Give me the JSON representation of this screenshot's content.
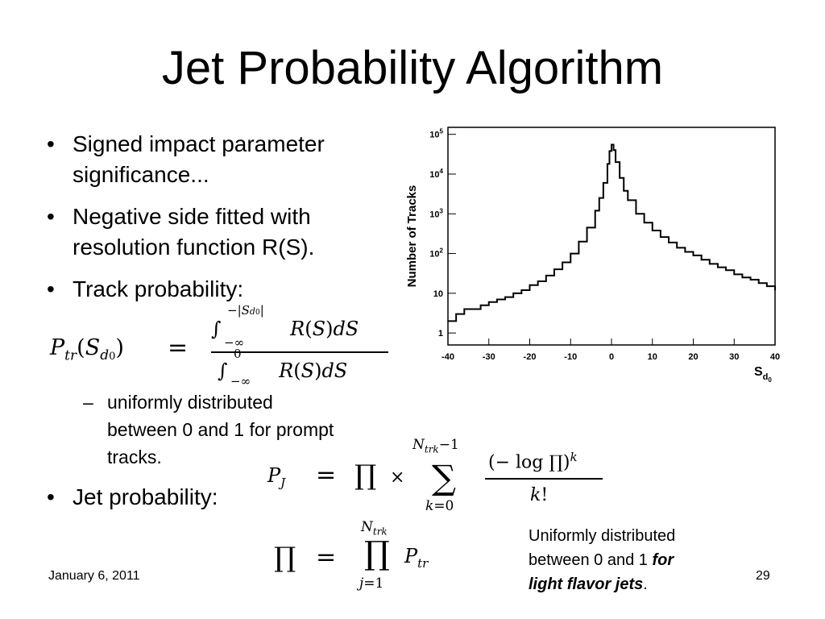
{
  "slide": {
    "title": "Jet Probability Algorithm",
    "bullets": [
      {
        "text": "Signed impact parameter"
      },
      {
        "text": "significance..."
      },
      {
        "text": "Negative side fitted with"
      },
      {
        "text": "resolution function R(S)."
      },
      {
        "text": "Track probability:"
      }
    ],
    "sub_bullet": [
      "uniformly distributed",
      "between 0 and 1 for prompt",
      "tracks."
    ],
    "jet_bullet": "Jet probability:",
    "bullet_glyph": "•",
    "dash_glyph": "–",
    "note": {
      "line1": "Uniformly distributed",
      "line2_plain": "between 0 and 1 ",
      "line2_emph": "for",
      "line3_emph": "light flavor jets",
      "line3_tail": "."
    },
    "footer": {
      "date": "January 6, 2011",
      "page": "29"
    }
  },
  "equations": {
    "track_prob_lhs": "P_tr(S_d0)",
    "track_prob_num": "∫_{-∞}^{-|S_d0|} R(S)dS",
    "track_prob_den": "∫_{-∞}^{0} R(S)dS",
    "jet_prob": "P_J = ∏ × Σ_{k=0}^{N_trk - 1} (−log ∏)^k / k!",
    "product": "∏ = ∏_{j=1}^{N_trk} P_tr"
  },
  "chart_data": {
    "type": "line",
    "ylabel": "Number of Tracks",
    "xlabel": "S_d0",
    "y_scale": "log",
    "xlim": [
      -40,
      40
    ],
    "ylim": [
      0.5,
      150000
    ],
    "x_ticks": [
      "-40",
      "-30",
      "-20",
      "-10",
      "0",
      "10",
      "20",
      "30",
      "40"
    ],
    "y_ticks": [
      {
        "base": "10",
        "exp": "5"
      },
      {
        "base": "10",
        "exp": "4"
      },
      {
        "base": "10",
        "exp": "3"
      },
      {
        "base": "10",
        "exp": "2"
      },
      {
        "label": "10"
      },
      {
        "label": "1"
      }
    ],
    "series": [
      {
        "color": "#000000",
        "points": [
          [
            -40,
            2
          ],
          [
            -38,
            3
          ],
          [
            -36,
            4
          ],
          [
            -34,
            4
          ],
          [
            -32,
            5
          ],
          [
            -30,
            6
          ],
          [
            -28,
            7
          ],
          [
            -26,
            8
          ],
          [
            -24,
            10
          ],
          [
            -22,
            12
          ],
          [
            -20,
            16
          ],
          [
            -18,
            20
          ],
          [
            -16,
            28
          ],
          [
            -14,
            40
          ],
          [
            -12,
            60
          ],
          [
            -10,
            100
          ],
          [
            -8,
            200
          ],
          [
            -6,
            450
          ],
          [
            -4,
            1200
          ],
          [
            -3,
            2500
          ],
          [
            -2,
            6000
          ],
          [
            -1,
            18000
          ],
          [
            -0.5,
            38000
          ],
          [
            0,
            55000
          ],
          [
            0.5,
            40000
          ],
          [
            1,
            20000
          ],
          [
            2,
            8000
          ],
          [
            3,
            3800
          ],
          [
            4,
            2200
          ],
          [
            6,
            1000
          ],
          [
            8,
            600
          ],
          [
            10,
            380
          ],
          [
            12,
            260
          ],
          [
            14,
            190
          ],
          [
            16,
            140
          ],
          [
            18,
            110
          ],
          [
            20,
            90
          ],
          [
            22,
            70
          ],
          [
            24,
            55
          ],
          [
            26,
            45
          ],
          [
            28,
            38
          ],
          [
            30,
            30
          ],
          [
            32,
            25
          ],
          [
            34,
            22
          ],
          [
            36,
            18
          ],
          [
            38,
            15
          ],
          [
            40,
            12
          ]
        ]
      }
    ]
  },
  "colors": {
    "text": "#000000",
    "background": "#ffffff"
  }
}
